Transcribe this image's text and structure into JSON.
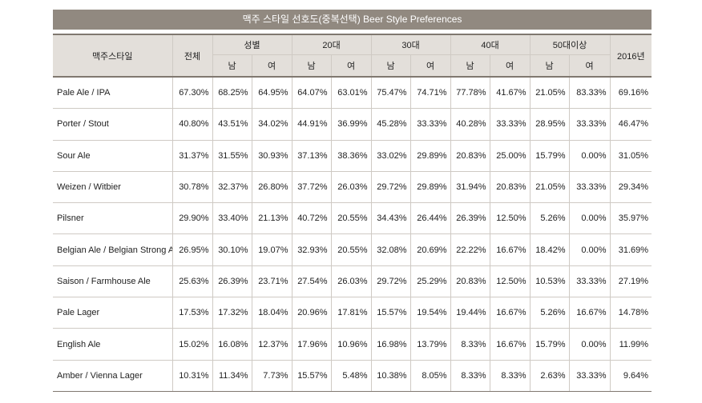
{
  "title": "맥주 스타일 선호도(중복선택)  Beer Style Preferences",
  "headers": {
    "style": "맥주스타일",
    "total": "전체",
    "gender": "성별",
    "age20": "20대",
    "age30": "30대",
    "age40": "40대",
    "age50": "50대이상",
    "year2016": "2016년",
    "male": "남",
    "female": "여"
  },
  "rows": [
    {
      "label": "Pale Ale / IPA",
      "values": [
        "67.30%",
        "68.25%",
        "64.95%",
        "64.07%",
        "63.01%",
        "75.47%",
        "74.71%",
        "77.78%",
        "41.67%",
        "21.05%",
        "83.33%",
        "69.16%"
      ]
    },
    {
      "label": "Porter / Stout",
      "values": [
        "40.80%",
        "43.51%",
        "34.02%",
        "44.91%",
        "36.99%",
        "45.28%",
        "33.33%",
        "40.28%",
        "33.33%",
        "28.95%",
        "33.33%",
        "46.47%"
      ]
    },
    {
      "label": "Sour Ale",
      "values": [
        "31.37%",
        "31.55%",
        "30.93%",
        "37.13%",
        "38.36%",
        "33.02%",
        "29.89%",
        "20.83%",
        "25.00%",
        "15.79%",
        "0.00%",
        "31.05%"
      ]
    },
    {
      "label": "Weizen / Witbier",
      "values": [
        "30.78%",
        "32.37%",
        "26.80%",
        "37.72%",
        "26.03%",
        "29.72%",
        "29.89%",
        "31.94%",
        "20.83%",
        "21.05%",
        "33.33%",
        "29.34%"
      ]
    },
    {
      "label": "Pilsner",
      "values": [
        "29.90%",
        "33.40%",
        "21.13%",
        "40.72%",
        "20.55%",
        "34.43%",
        "26.44%",
        "26.39%",
        "12.50%",
        "5.26%",
        "0.00%",
        "35.97%"
      ]
    },
    {
      "label": "Belgian Ale / Belgian Strong Ale",
      "values": [
        "26.95%",
        "30.10%",
        "19.07%",
        "32.93%",
        "20.55%",
        "32.08%",
        "20.69%",
        "22.22%",
        "16.67%",
        "18.42%",
        "0.00%",
        "31.69%"
      ]
    },
    {
      "label": "Saison / Farmhouse Ale",
      "values": [
        "25.63%",
        "26.39%",
        "23.71%",
        "27.54%",
        "26.03%",
        "29.72%",
        "25.29%",
        "20.83%",
        "12.50%",
        "10.53%",
        "33.33%",
        "27.19%"
      ]
    },
    {
      "label": "Pale Lager",
      "values": [
        "17.53%",
        "17.32%",
        "18.04%",
        "20.96%",
        "17.81%",
        "15.57%",
        "19.54%",
        "19.44%",
        "16.67%",
        "5.26%",
        "16.67%",
        "14.78%"
      ]
    },
    {
      "label": "English Ale",
      "values": [
        "15.02%",
        "16.08%",
        "12.37%",
        "17.96%",
        "10.96%",
        "16.98%",
        "13.79%",
        "8.33%",
        "16.67%",
        "15.79%",
        "0.00%",
        "11.99%"
      ]
    },
    {
      "label": "Amber / Vienna Lager",
      "values": [
        "10.31%",
        "11.34%",
        "7.73%",
        "15.57%",
        "5.48%",
        "10.38%",
        "8.05%",
        "8.33%",
        "8.33%",
        "2.63%",
        "33.33%",
        "9.64%"
      ]
    }
  ]
}
